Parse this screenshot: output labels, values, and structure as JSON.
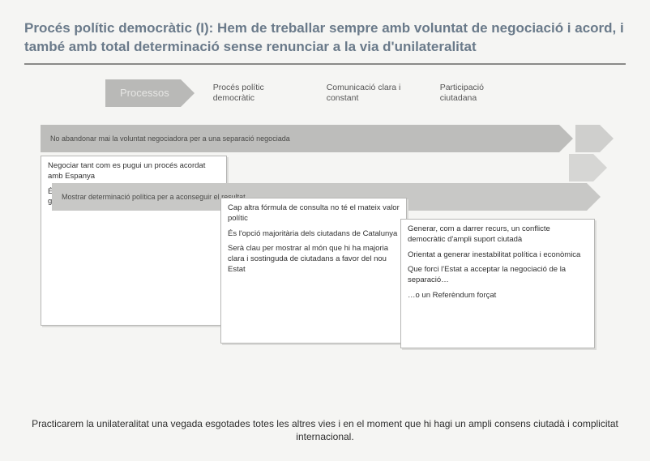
{
  "title": "Procés polític democràtic (I): Hem de treballar sempre amb voluntat de negociació i acord, i també amb total determinació sense renunciar a la via d'unilateralitat",
  "nav": {
    "arrow_label": "Processos",
    "items": [
      "Procés polític democràtic",
      "Comunicació clara i constant",
      "Participació ciutadana"
    ]
  },
  "bands": {
    "a": "No abandonar mai la voluntat negociadora per a una separació negociada",
    "b": "Mostrar determinació política per a aconseguir el resultat"
  },
  "cards": {
    "c1": [
      "Negociar tant com es pugui un procés acordat amb Espanya",
      "És la fórmula òptima per a la desconnexió amb garanties de forma serena i ordenada"
    ],
    "c2": [
      "Cap altra fórmula de consulta no té el mateix valor polític",
      "És l'opció majoritària dels ciutadans de Catalunya",
      "Serà clau per mostrar al món que hi ha majoria clara i sostinguda de ciutadans a favor del nou Estat"
    ],
    "c3": [
      "Generar, com a darrer recurs, un conflicte democràtic d'ampli suport ciutadà",
      "Orientat a generar inestabilitat política i econòmica",
      "Que forci l'Estat a acceptar la negociació de la separació…",
      "…o un Referèndum forçat"
    ]
  },
  "footer": "Practicarem la unilateralitat una vegada esgotades totes les altres vies i en el moment que hi hagi un ampli consens ciutadà i complicitat internacional.",
  "colors": {
    "background": "#f5f5f3",
    "title": "#6a7a8a",
    "band_a": "#bdbdbb",
    "band_b": "#c8c8c6",
    "card_bg": "#ffffff",
    "card_border": "#b6b6b4"
  }
}
